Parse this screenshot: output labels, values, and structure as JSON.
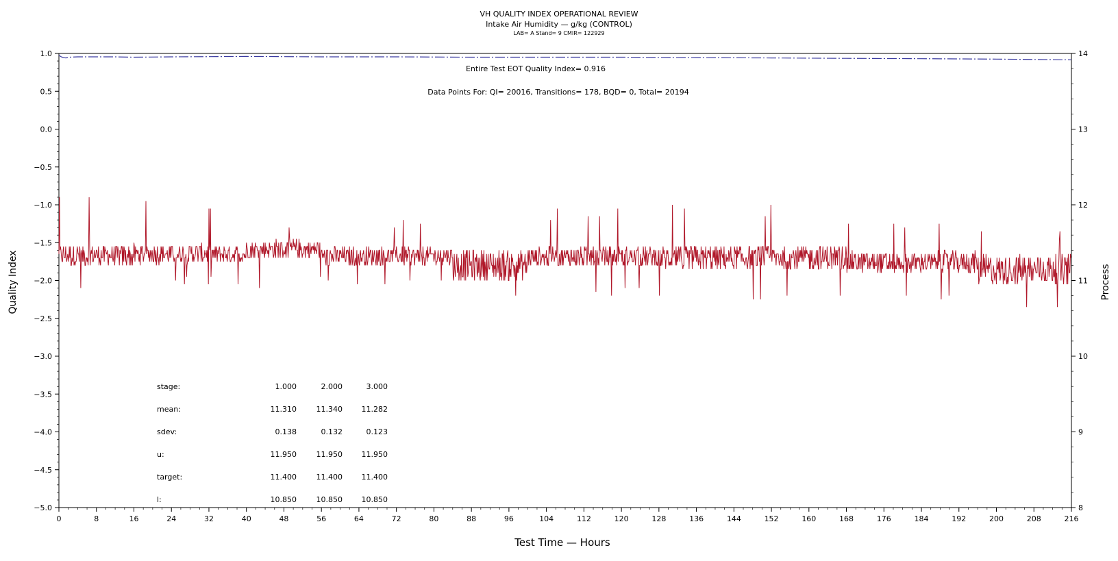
{
  "chart_data": {
    "type": "line",
    "title": "VH QUALITY INDEX OPERATIONAL REVIEW",
    "subtitle": "Intake Air Humidity — g/kg (CONTROL)",
    "subtitle2": "LAB= A Stand= 9 CMIR= 122929",
    "xlabel": "Test Time — Hours",
    "ylabel_left": "Quality Index",
    "ylabel_right": "Process",
    "xlim": [
      0,
      216
    ],
    "x_ticks": [
      0,
      8,
      16,
      24,
      32,
      40,
      48,
      56,
      64,
      72,
      80,
      88,
      96,
      104,
      112,
      120,
      128,
      136,
      144,
      152,
      160,
      168,
      176,
      184,
      192,
      200,
      208,
      216
    ],
    "ylim_left": [
      -5.0,
      1.0
    ],
    "y_ticks_left": [
      "1.0",
      "0.5",
      "0.0",
      "−0.5",
      "−1.0",
      "−1.5",
      "−2.0",
      "−2.5",
      "−3.0",
      "−3.5",
      "−4.0",
      "−4.5",
      "−5.0"
    ],
    "ylim_right": [
      8,
      14
    ],
    "y_ticks_right": [
      "14",
      "13",
      "12",
      "11",
      "10",
      "9",
      "8"
    ],
    "grid": false,
    "annotations": {
      "eot_line": "Entire Test EOT Quality Index=   0.916",
      "points_line": "Data Points For: QI= 20016, Transitions=    178, BQD=      0, Total= 20194"
    },
    "series": [
      {
        "name": "Quality Index",
        "axis": "left",
        "style": "dash-dot",
        "color": "#3a3aa0",
        "x": [
          0,
          0.5,
          1,
          1.5,
          2,
          4,
          8,
          12,
          16,
          24,
          40,
          56,
          72,
          88,
          104,
          120,
          136,
          152,
          168,
          184,
          200,
          208,
          216
        ],
        "values": [
          0.975,
          0.955,
          0.945,
          0.94,
          0.95,
          0.955,
          0.955,
          0.955,
          0.95,
          0.955,
          0.96,
          0.955,
          0.955,
          0.95,
          0.95,
          0.95,
          0.945,
          0.94,
          0.935,
          0.93,
          0.925,
          0.92,
          0.916
        ]
      },
      {
        "name": "Process",
        "axis": "right",
        "style": "solid",
        "color": "#b0182a",
        "note": "per-point readings approximated; envelope values read from chart",
        "segments": [
          {
            "x_range": [
              0,
              16
            ],
            "base": 11.33,
            "spread": 0.14,
            "max": 12.2,
            "min": 10.8
          },
          {
            "x_range": [
              16,
              40
            ],
            "base": 11.35,
            "spread": 0.13,
            "max": 12.1,
            "min": 10.9
          },
          {
            "x_range": [
              40,
              56
            ],
            "base": 11.41,
            "spread": 0.13,
            "max": 11.8,
            "min": 10.9
          },
          {
            "x_range": [
              56,
              84
            ],
            "base": 11.32,
            "spread": 0.12,
            "max": 11.85,
            "min": 10.9
          },
          {
            "x_range": [
              84,
              100
            ],
            "base": 11.2,
            "spread": 0.2,
            "max": 11.8,
            "min": 10.7
          },
          {
            "x_range": [
              100,
              128
            ],
            "base": 11.31,
            "spread": 0.13,
            "max": 11.95,
            "min": 10.8
          },
          {
            "x_range": [
              128,
              168
            ],
            "base": 11.3,
            "spread": 0.16,
            "max": 12.0,
            "min": 10.7
          },
          {
            "x_range": [
              168,
              196
            ],
            "base": 11.24,
            "spread": 0.14,
            "max": 11.8,
            "min": 10.7
          },
          {
            "x_range": [
              196,
              216
            ],
            "base": 11.14,
            "spread": 0.2,
            "max": 11.7,
            "min": 10.5
          }
        ]
      }
    ],
    "stats_table": {
      "row_labels": [
        "stage:",
        "mean:",
        "sdev:",
        "u:",
        "target:",
        "l:"
      ],
      "columns": [
        [
          "1.000",
          "11.310",
          "0.138",
          "11.950",
          "11.400",
          "10.850"
        ],
        [
          "2.000",
          "11.340",
          "0.132",
          "11.950",
          "11.400",
          "10.850"
        ],
        [
          "3.000",
          "11.282",
          "0.123",
          "11.950",
          "11.400",
          "10.850"
        ]
      ]
    }
  }
}
